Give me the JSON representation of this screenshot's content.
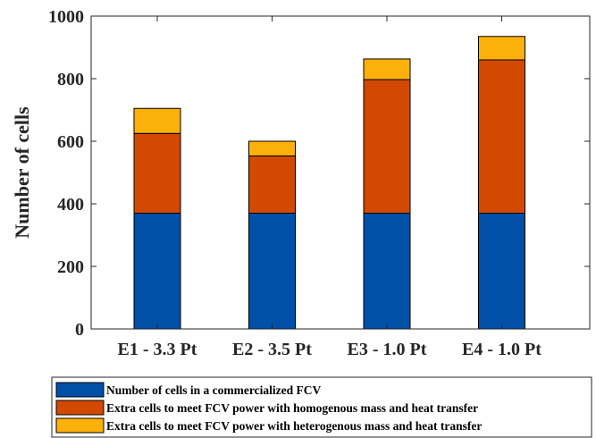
{
  "chart_data": {
    "type": "bar",
    "stacked": true,
    "categories": [
      "E1 - 3.3 Pt",
      "E2 - 3.5 Pt",
      "E3 - 1.0 Pt",
      "E4 - 1.0 Pt"
    ],
    "series": [
      {
        "name": "Number of cells in a commercialized FCV",
        "color": "#0050a8",
        "values": [
          370,
          370,
          370,
          370
        ]
      },
      {
        "name": "Extra cells to meet FCV power with homogenous mass and heat transfer",
        "color": "#d24a02",
        "values": [
          255,
          183,
          427,
          490
        ]
      },
      {
        "name": "Extra cells to meet FCV power with heterogenous mass and heat transfer",
        "color": "#fcb00a",
        "values": [
          80,
          47,
          66,
          75
        ]
      }
    ],
    "title": "",
    "xlabel": "",
    "ylabel": "Number of cells",
    "ylim": [
      0,
      1000
    ],
    "yticks": [
      0,
      200,
      400,
      600,
      800,
      1000
    ],
    "grid": false,
    "legend_position": "bottom"
  }
}
